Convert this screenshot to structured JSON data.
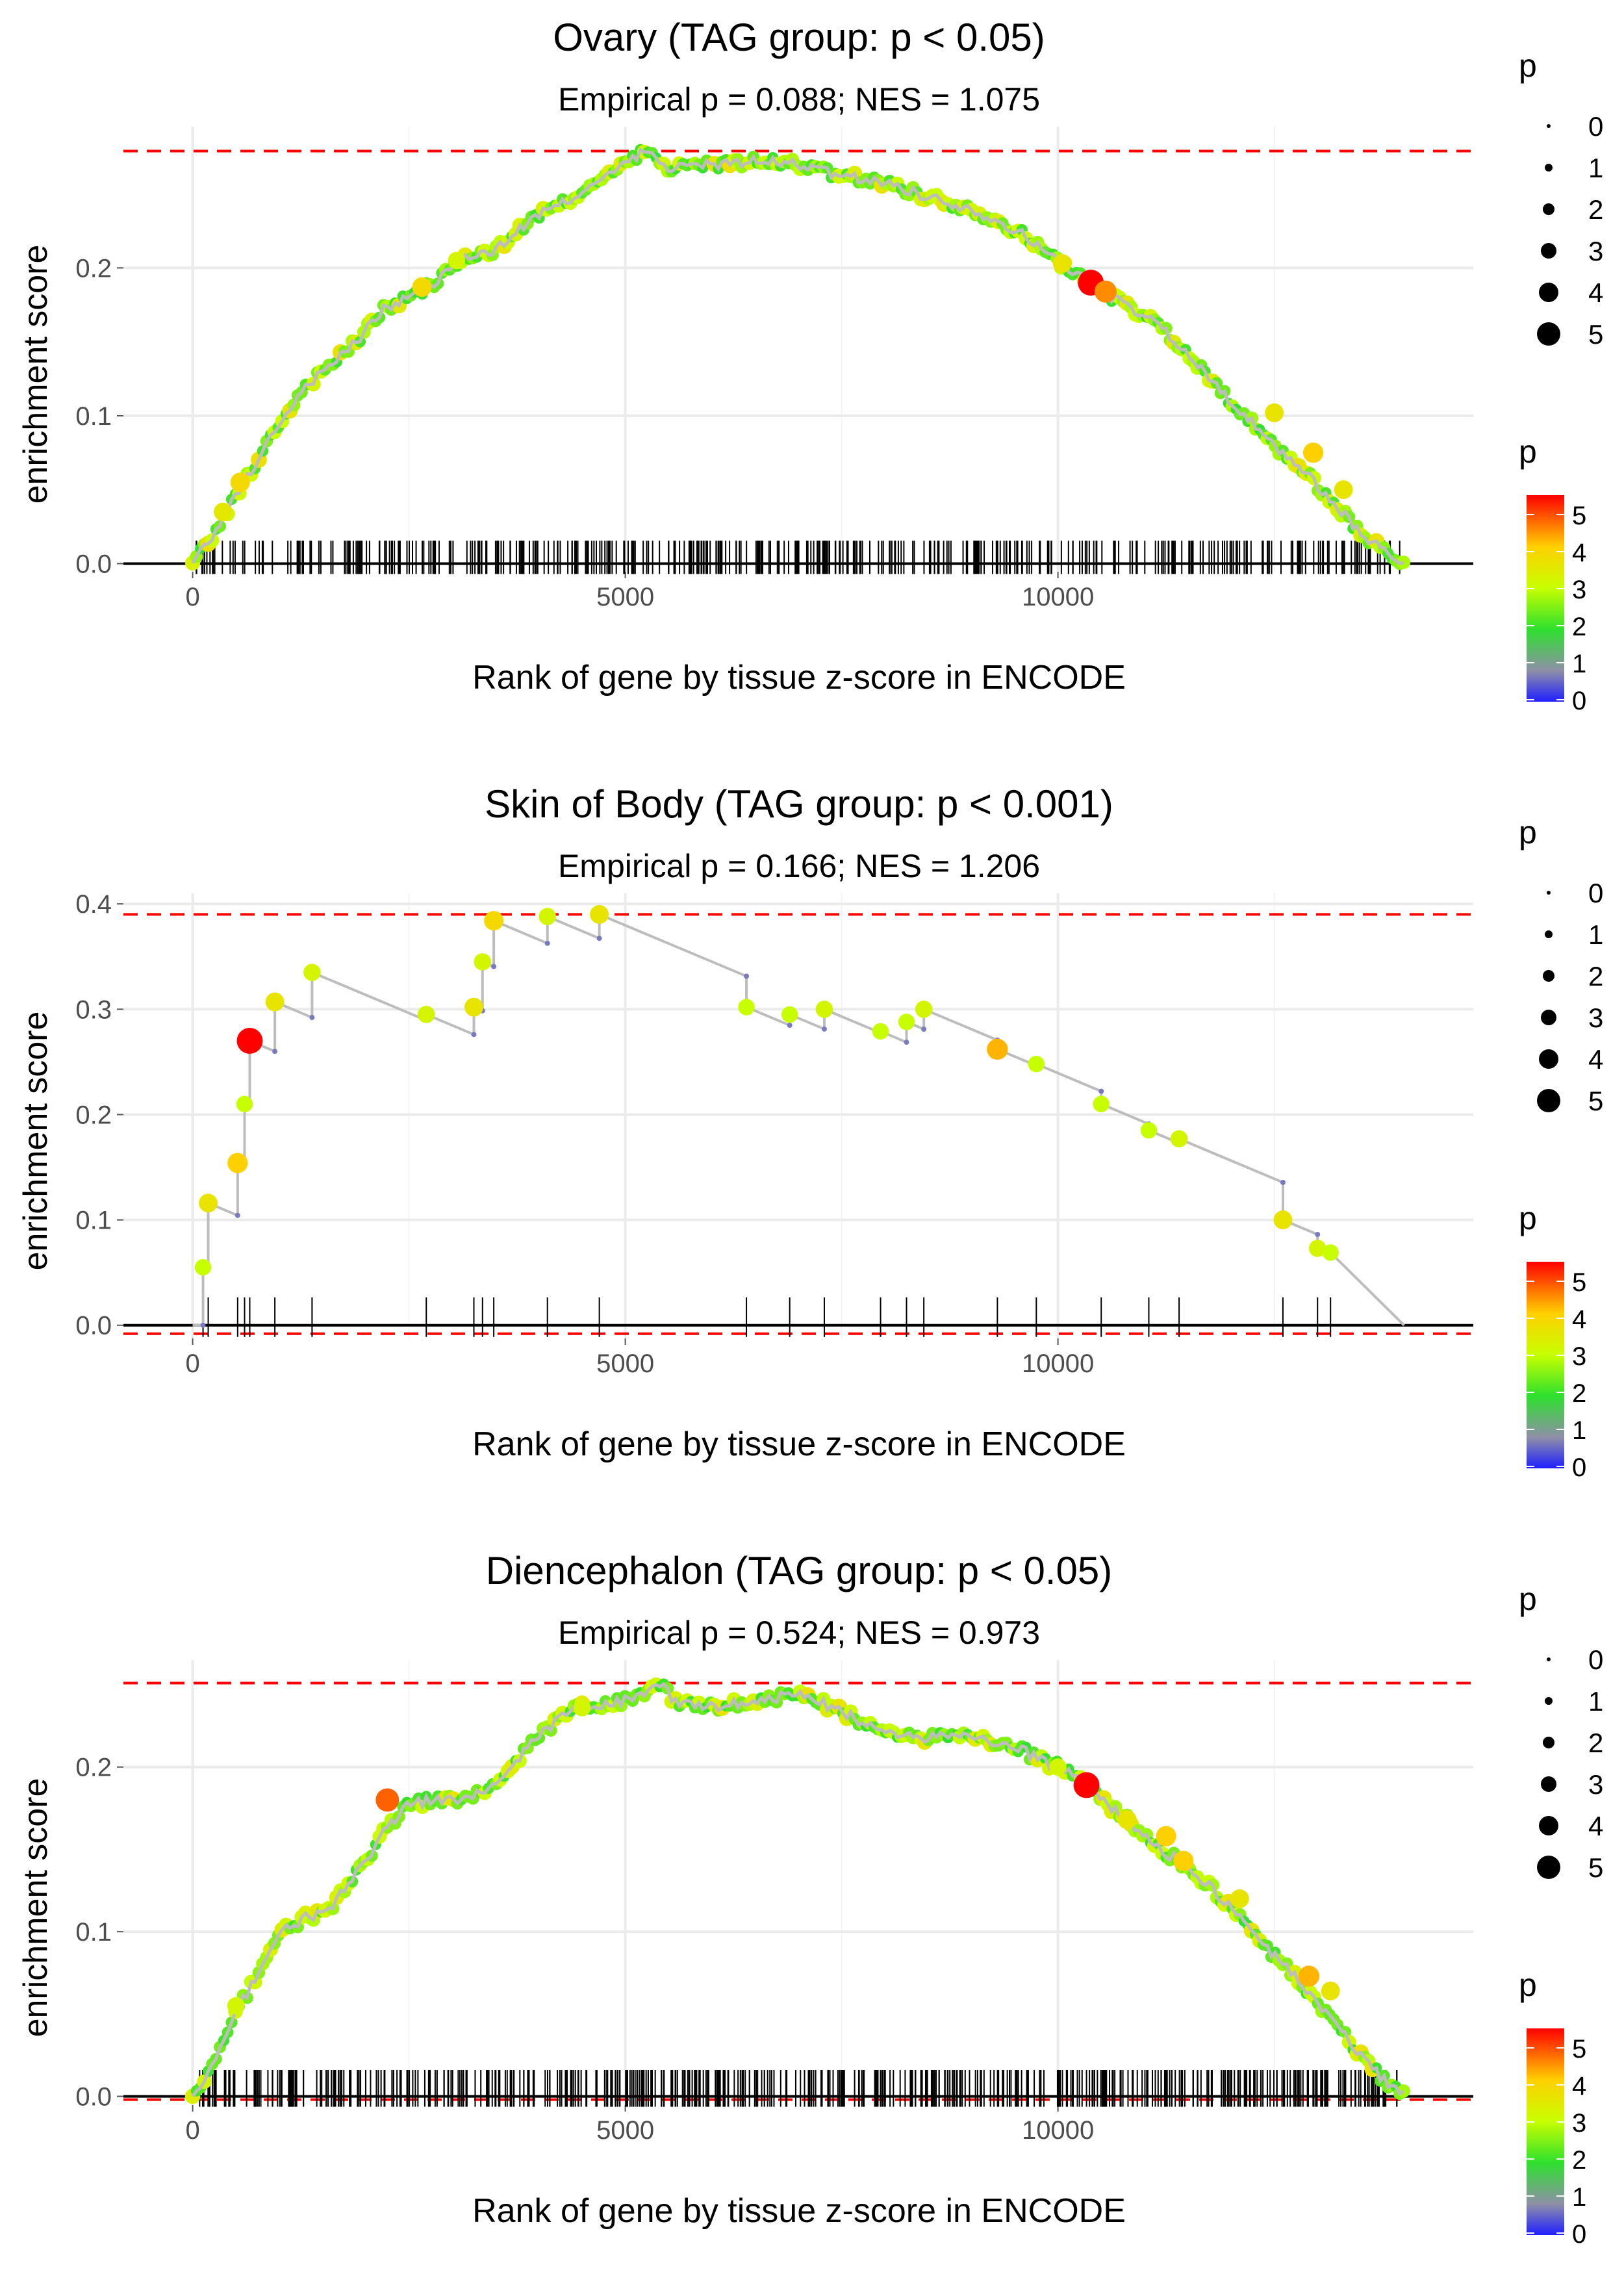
{
  "chart_data": [
    {
      "type": "line",
      "title": "Ovary (TAG group: p < 0.05)",
      "subtitle": "Empirical p = 0.088; NES = 1.075",
      "xlabel": "Rank of gene by tissue z-score in ENCODE",
      "ylabel": "enrichment score",
      "xlim": [
        -800,
        14800
      ],
      "ylim": [
        -0.0055,
        0.2955
      ],
      "x_ticks": [
        0,
        5000,
        10000
      ],
      "x_tick_labels": [
        "0",
        "5000",
        "10000"
      ],
      "y_ticks": [
        0.0,
        0.1,
        0.2
      ],
      "y_tick_labels": [
        "0.0",
        "0.1",
        "0.2"
      ],
      "max_es_line": 0.279,
      "min_es_line": null,
      "x_end": 14000,
      "curve": {
        "x": [
          0,
          150,
          400,
          700,
          1000,
          1300,
          1600,
          1900,
          2200,
          2500,
          2800,
          3100,
          3500,
          3900,
          4300,
          4700,
          5000,
          5200,
          5500,
          6000,
          6500,
          7000,
          7500,
          8000,
          8500,
          9000,
          9500,
          10000,
          10400,
          10800,
          11200,
          11600,
          12000,
          12400,
          12800,
          13200,
          13600,
          14000
        ],
        "y": [
          0.0,
          0.012,
          0.035,
          0.065,
          0.095,
          0.12,
          0.135,
          0.15,
          0.172,
          0.18,
          0.19,
          0.205,
          0.212,
          0.232,
          0.245,
          0.258,
          0.27,
          0.279,
          0.268,
          0.27,
          0.272,
          0.27,
          0.262,
          0.258,
          0.248,
          0.24,
          0.226,
          0.205,
          0.188,
          0.175,
          0.16,
          0.135,
          0.11,
          0.085,
          0.065,
          0.04,
          0.015,
          0.0
        ],
        "jitter": 0.0035,
        "point_step": 45
      },
      "highlight_points": [
        {
          "x": 350,
          "y": 0.035,
          "p": 3.5
        },
        {
          "x": 550,
          "y": 0.055,
          "p": 3.8
        },
        {
          "x": 2650,
          "y": 0.187,
          "p": 3.8
        },
        {
          "x": 3050,
          "y": 0.205,
          "p": 3.2
        },
        {
          "x": 10050,
          "y": 0.203,
          "p": 3.6
        },
        {
          "x": 10380,
          "y": 0.19,
          "p": 5.5
        },
        {
          "x": 10550,
          "y": 0.184,
          "p": 4.5
        },
        {
          "x": 12500,
          "y": 0.102,
          "p": 3.6
        },
        {
          "x": 12950,
          "y": 0.075,
          "p": 4.0
        },
        {
          "x": 13300,
          "y": 0.05,
          "p": 3.6
        }
      ],
      "rug_count": 430,
      "rug_range": [
        30,
        13950
      ],
      "rug_height": 0.0155,
      "connectors": []
    },
    {
      "type": "line",
      "title": "Skin of Body (TAG group: p < 0.001)",
      "subtitle": "Empirical p = 0.166; NES = 1.206",
      "xlabel": "Rank of gene by tissue z-score in ENCODE",
      "ylabel": "enrichment score",
      "xlim": [
        -800,
        14800
      ],
      "ylim": [
        -0.0125,
        0.41
      ],
      "x_ticks": [
        0,
        5000,
        10000
      ],
      "x_tick_labels": [
        "0",
        "5000",
        "10000"
      ],
      "y_ticks": [
        0.0,
        0.1,
        0.2,
        0.3,
        0.4
      ],
      "y_tick_labels": [
        "0.0",
        "0.1",
        "0.2",
        "0.3",
        "0.4"
      ],
      "max_es_line": 0.39,
      "min_es_line": -0.008,
      "x_end": 14000,
      "points": [
        {
          "x": 120,
          "y": 0.055,
          "p": 3.0
        },
        {
          "x": 180,
          "y": 0.116,
          "p": 3.6
        },
        {
          "x": 520,
          "y": 0.154,
          "p": 4.0
        },
        {
          "x": 600,
          "y": 0.21,
          "p": 3.0
        },
        {
          "x": 660,
          "y": 0.27,
          "p": 5.5
        },
        {
          "x": 950,
          "y": 0.307,
          "p": 3.6
        },
        {
          "x": 1380,
          "y": 0.335,
          "p": 3.2
        },
        {
          "x": 2700,
          "y": 0.295,
          "p": 3.2
        },
        {
          "x": 3250,
          "y": 0.302,
          "p": 3.6
        },
        {
          "x": 3350,
          "y": 0.345,
          "p": 3.2
        },
        {
          "x": 3480,
          "y": 0.384,
          "p": 3.8
        },
        {
          "x": 4100,
          "y": 0.388,
          "p": 3.2
        },
        {
          "x": 4700,
          "y": 0.39,
          "p": 3.6
        },
        {
          "x": 6400,
          "y": 0.302,
          "p": 3.0
        },
        {
          "x": 6900,
          "y": 0.295,
          "p": 3.0
        },
        {
          "x": 7300,
          "y": 0.3,
          "p": 3.2
        },
        {
          "x": 7950,
          "y": 0.279,
          "p": 3.0
        },
        {
          "x": 8250,
          "y": 0.288,
          "p": 3.0
        },
        {
          "x": 8450,
          "y": 0.3,
          "p": 3.2
        },
        {
          "x": 9300,
          "y": 0.262,
          "p": 4.2
        },
        {
          "x": 9750,
          "y": 0.248,
          "p": 3.0
        },
        {
          "x": 10500,
          "y": 0.21,
          "p": 3.0
        },
        {
          "x": 11050,
          "y": 0.185,
          "p": 3.0
        },
        {
          "x": 11400,
          "y": 0.177,
          "p": 3.2
        },
        {
          "x": 12600,
          "y": 0.1,
          "p": 3.6
        },
        {
          "x": 13000,
          "y": 0.073,
          "p": 3.2
        },
        {
          "x": 13150,
          "y": 0.069,
          "p": 3.0
        }
      ],
      "rug_values": [
        120,
        180,
        520,
        600,
        660,
        950,
        1380,
        2700,
        3250,
        3350,
        3480,
        4100,
        4700,
        6400,
        6900,
        7300,
        7950,
        8250,
        8450,
        9300,
        9750,
        10500,
        11050,
        11400,
        12600,
        13000,
        13150
      ],
      "rug_height": 0.0265,
      "x_end_value": 0.0
    },
    {
      "type": "line",
      "title": "Diencephalon (TAG group: p < 0.05)",
      "subtitle": "Empirical p = 0.524; NES = 0.973",
      "xlabel": "Rank of gene by tissue z-score in ENCODE",
      "ylabel": "enrichment score",
      "xlim": [
        -800,
        14800
      ],
      "ylim": [
        -0.0053,
        0.265
      ],
      "x_ticks": [
        0,
        5000,
        10000
      ],
      "x_tick_labels": [
        "0",
        "5000",
        "10000"
      ],
      "y_ticks": [
        0.0,
        0.1,
        0.2
      ],
      "y_tick_labels": [
        "0.0",
        "0.1",
        "0.2"
      ],
      "max_es_line": 0.251,
      "min_es_line": -0.002,
      "x_end": 14000,
      "curve": {
        "x": [
          0,
          150,
          400,
          700,
          1000,
          1300,
          1600,
          1900,
          2200,
          2500,
          2800,
          3200,
          3600,
          4000,
          4400,
          4800,
          5200,
          5400,
          5600,
          6000,
          6500,
          7000,
          7500,
          8000,
          8500,
          9000,
          9500,
          10000,
          10400,
          10800,
          11200,
          11600,
          12000,
          12400,
          12800,
          13200,
          13600,
          14000
        ],
        "y": [
          0.0,
          0.012,
          0.04,
          0.07,
          0.1,
          0.108,
          0.115,
          0.135,
          0.16,
          0.178,
          0.18,
          0.18,
          0.195,
          0.22,
          0.235,
          0.238,
          0.244,
          0.25,
          0.238,
          0.236,
          0.24,
          0.244,
          0.234,
          0.22,
          0.218,
          0.218,
          0.212,
          0.2,
          0.186,
          0.168,
          0.15,
          0.135,
          0.115,
          0.09,
          0.07,
          0.045,
          0.018,
          0.0
        ],
        "jitter": 0.0032,
        "point_step": 45
      },
      "highlight_points": [
        {
          "x": 500,
          "y": 0.055,
          "p": 3.2
        },
        {
          "x": 2250,
          "y": 0.18,
          "p": 4.8
        },
        {
          "x": 4500,
          "y": 0.236,
          "p": 3.2
        },
        {
          "x": 10000,
          "y": 0.2,
          "p": 3.2
        },
        {
          "x": 10330,
          "y": 0.189,
          "p": 5.5
        },
        {
          "x": 10800,
          "y": 0.168,
          "p": 3.6
        },
        {
          "x": 11250,
          "y": 0.158,
          "p": 4.0
        },
        {
          "x": 11450,
          "y": 0.143,
          "p": 4.0
        },
        {
          "x": 12100,
          "y": 0.12,
          "p": 3.6
        },
        {
          "x": 12900,
          "y": 0.073,
          "p": 4.2
        },
        {
          "x": 13150,
          "y": 0.064,
          "p": 3.6
        }
      ],
      "rug_count": 520,
      "rug_range": [
        80,
        13950
      ],
      "rug_height": 0.016,
      "connectors": []
    }
  ],
  "legend": {
    "size_title": "p",
    "size_labels": [
      "0",
      "1",
      "2",
      "3",
      "4",
      "5"
    ],
    "color_title": "p",
    "color_labels": [
      "5",
      "4",
      "3",
      "2",
      "1",
      "0"
    ]
  },
  "colors": {
    "p0": "#1f1fff",
    "p1": "#8f8fa8",
    "p2": "#2ee02e",
    "p3": "#c8ff00",
    "p4": "#ffd000",
    "p5": "#ff0000",
    "line": "#bdbdbd",
    "grid": "#ebebeb",
    "dash": "#ff0000"
  }
}
